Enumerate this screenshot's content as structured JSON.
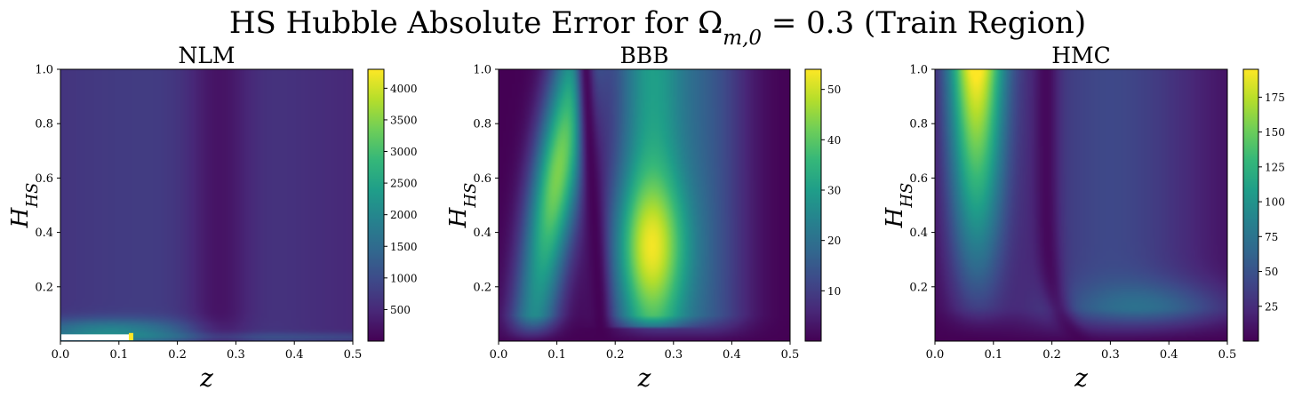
{
  "figure": {
    "title": "HS Hubble Absolute Error for Ω_{m,0} = 0.3 (Train Region)",
    "title_main": "HS Hubble Absolute Error for Ω",
    "title_sub": "m,0",
    "title_tail": " = 0.3 (Train Region)"
  },
  "colors": {
    "viridis": [
      "#440154",
      "#482878",
      "#3e4989",
      "#31688e",
      "#26828e",
      "#1f9e89",
      "#35b779",
      "#6ece58",
      "#b5de2b",
      "#fde725"
    ],
    "axis": "#000000"
  },
  "chart_data": [
    {
      "type": "heatmap",
      "title": "NLM",
      "xlabel": "z",
      "ylabel_main": "H",
      "ylabel_sub": "HS",
      "xlim": [
        0.0,
        0.5
      ],
      "ylim": [
        0.0,
        1.0
      ],
      "xticks": [
        "0.0",
        "0.1",
        "0.2",
        "0.3",
        "0.4",
        "0.5"
      ],
      "yticks": [
        "0.2",
        "0.4",
        "0.6",
        "0.8",
        "1.0"
      ],
      "colorbar": {
        "min": 0,
        "max": 4300,
        "ticks": [
          "500",
          "1000",
          "1500",
          "2000",
          "2500",
          "3000",
          "3500",
          "4000"
        ]
      },
      "pattern": "nlm"
    },
    {
      "type": "heatmap",
      "title": "BBB",
      "xlabel": "z",
      "ylabel_main": "H",
      "ylabel_sub": "HS",
      "xlim": [
        0.0,
        0.5
      ],
      "ylim": [
        0.0,
        1.0
      ],
      "xticks": [
        "0.0",
        "0.1",
        "0.2",
        "0.3",
        "0.4",
        "0.5"
      ],
      "yticks": [
        "0.2",
        "0.4",
        "0.6",
        "0.8",
        "1.0"
      ],
      "colorbar": {
        "min": 0,
        "max": 54,
        "ticks": [
          "10",
          "20",
          "30",
          "40",
          "50"
        ]
      },
      "pattern": "bbb"
    },
    {
      "type": "heatmap",
      "title": "HMC",
      "xlabel": "z",
      "ylabel_main": "H",
      "ylabel_sub": "HS",
      "xlim": [
        0.0,
        0.5
      ],
      "ylim": [
        0.0,
        1.0
      ],
      "xticks": [
        "0.0",
        "0.1",
        "0.2",
        "0.3",
        "0.4",
        "0.5"
      ],
      "yticks": [
        "0.2",
        "0.4",
        "0.6",
        "0.8",
        "1.0"
      ],
      "colorbar": {
        "min": 0,
        "max": 195,
        "ticks": [
          "25",
          "50",
          "75",
          "100",
          "125",
          "150",
          "175"
        ]
      },
      "pattern": "hmc"
    }
  ]
}
